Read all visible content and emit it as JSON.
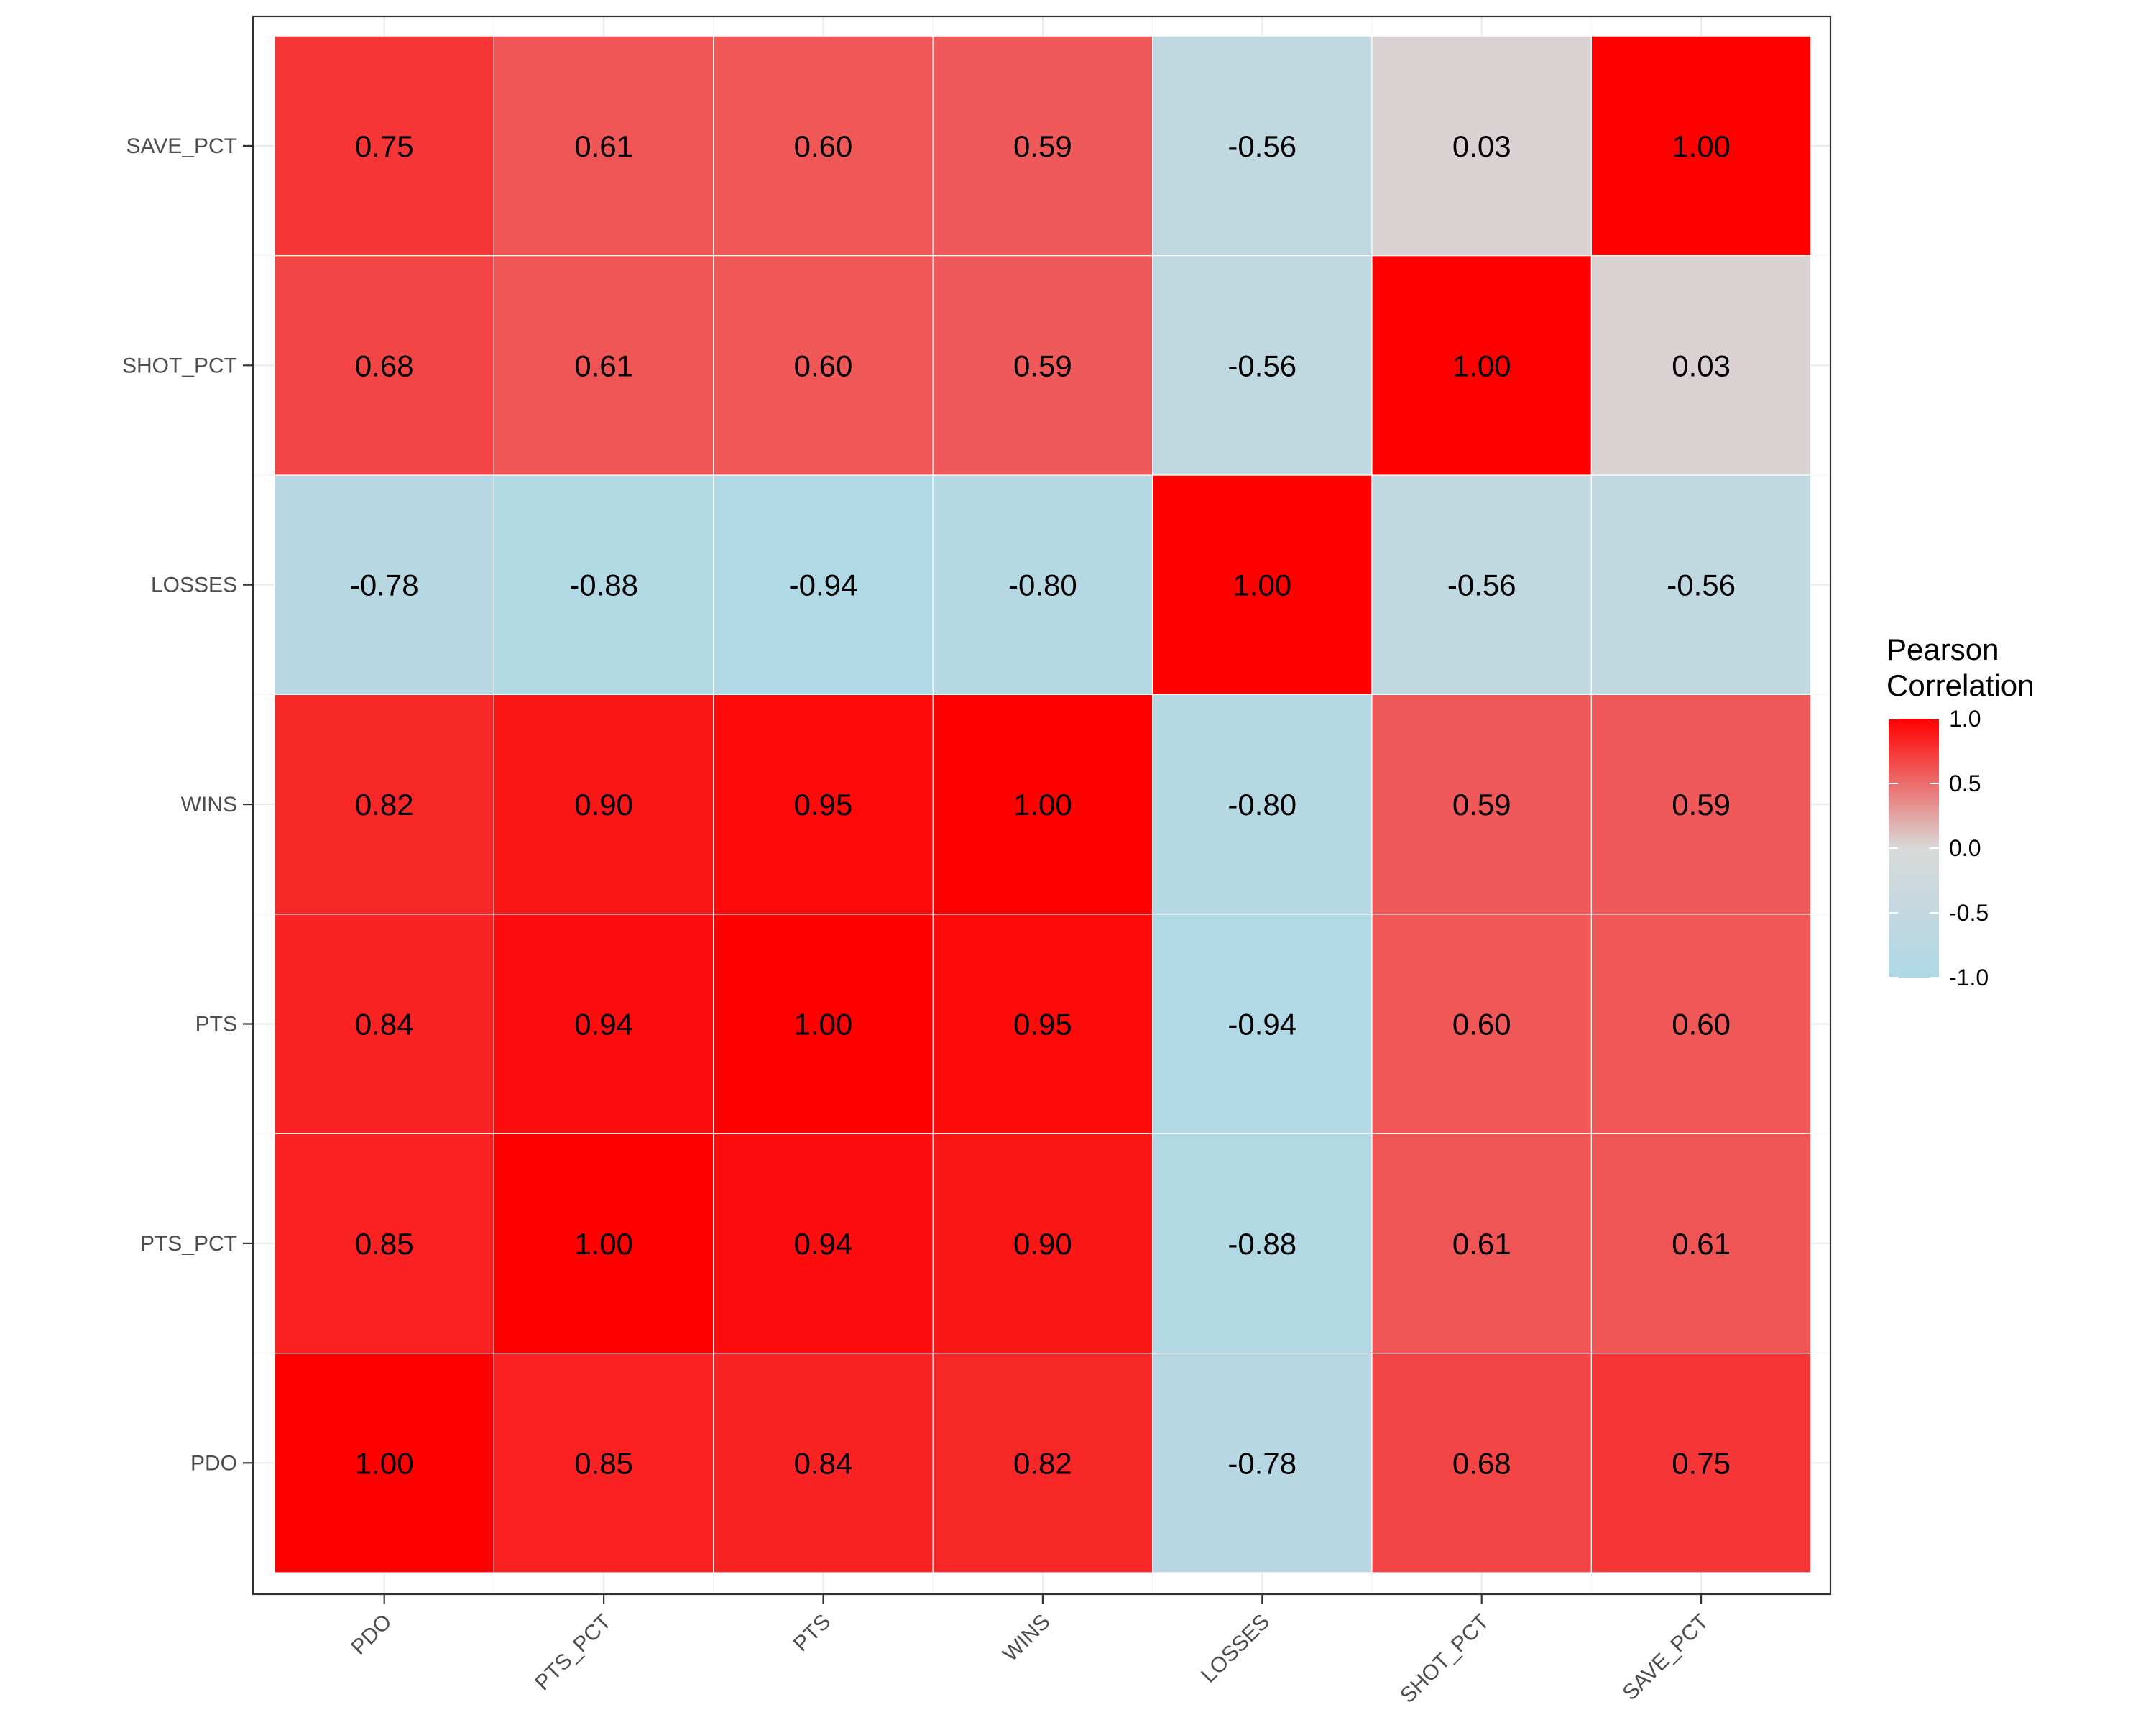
{
  "chart_data": {
    "type": "heatmap",
    "x_categories": [
      "PDO",
      "PTS_PCT",
      "PTS",
      "WINS",
      "LOSSES",
      "SHOT_PCT",
      "SAVE_PCT"
    ],
    "y_categories": [
      "PDO",
      "PTS_PCT",
      "PTS",
      "WINS",
      "LOSSES",
      "SHOT_PCT",
      "SAVE_PCT"
    ],
    "values": [
      [
        1.0,
        0.85,
        0.84,
        0.82,
        -0.78,
        0.68,
        0.75
      ],
      [
        0.85,
        1.0,
        0.94,
        0.9,
        -0.88,
        0.61,
        0.61
      ],
      [
        0.84,
        0.94,
        1.0,
        0.95,
        -0.94,
        0.6,
        0.6
      ],
      [
        0.82,
        0.9,
        0.95,
        1.0,
        -0.8,
        0.59,
        0.59
      ],
      [
        -0.78,
        -0.88,
        -0.94,
        -0.8,
        1.0,
        -0.56,
        -0.56
      ],
      [
        0.68,
        0.61,
        0.6,
        0.59,
        -0.56,
        1.0,
        0.03
      ],
      [
        0.75,
        0.61,
        0.6,
        0.59,
        -0.56,
        0.03,
        1.0
      ]
    ],
    "labels": [
      [
        "1.00",
        "0.85",
        "0.84",
        "0.82",
        "-0.78",
        "0.68",
        "0.75"
      ],
      [
        "0.85",
        "1.00",
        "0.94",
        "0.90",
        "-0.88",
        "0.61",
        "0.61"
      ],
      [
        "0.84",
        "0.94",
        "1.00",
        "0.95",
        "-0.94",
        "0.60",
        "0.60"
      ],
      [
        "0.82",
        "0.90",
        "0.95",
        "1.00",
        "-0.80",
        "0.59",
        "0.59"
      ],
      [
        "-0.78",
        "-0.88",
        "-0.94",
        "-0.80",
        "1.00",
        "-0.56",
        "-0.56"
      ],
      [
        "0.68",
        "0.61",
        "0.60",
        "0.59",
        "-0.56",
        "1.00",
        "0.03"
      ],
      [
        "0.75",
        "0.61",
        "0.60",
        "0.59",
        "-0.56",
        "0.03",
        "1.00"
      ]
    ],
    "title": "",
    "xlabel": "",
    "ylabel": "",
    "legend": {
      "title_lines": [
        "Pearson",
        "Correlation"
      ],
      "ticks": [
        1.0,
        0.5,
        0.0,
        -0.5,
        -1.0
      ],
      "tick_labels": [
        "1.0",
        "0.5",
        "0.0",
        "-0.5",
        "-1.0"
      ],
      "range": [
        -1,
        1
      ],
      "placement": "right"
    },
    "colors": {
      "low": "#add8e6",
      "mid": "#d9d9d9",
      "high": "#ff0000"
    },
    "grid": true
  }
}
